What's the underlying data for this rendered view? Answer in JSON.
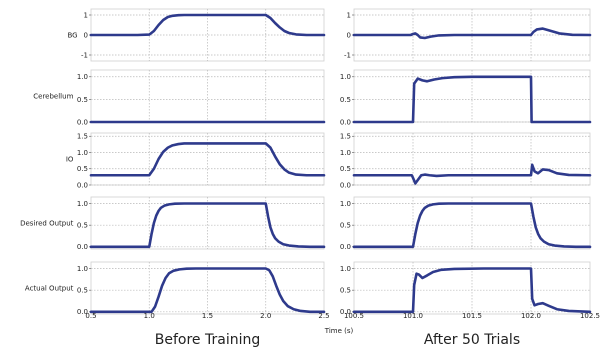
{
  "chart_data": {
    "type": "line",
    "line_color": "#2e3a8c",
    "grid": true,
    "grid_style": "dotted",
    "xlabel": "Time (s)",
    "columns": [
      {
        "id": "before",
        "caption": "Before Training",
        "xlim": [
          0.5,
          2.5
        ],
        "xticks": [
          0.5,
          1.0,
          1.5,
          2.0,
          2.5
        ],
        "xtick_labels": [
          "0.5",
          "1.0",
          "1.5",
          "2.0",
          "2.5"
        ]
      },
      {
        "id": "after",
        "caption": "After 50 Trials",
        "xlim": [
          100.5,
          102.5
        ],
        "xticks": [
          100.5,
          101.0,
          101.5,
          102.0,
          102.5
        ],
        "xtick_labels": [
          "100.5",
          "101.0",
          "101.5",
          "102.0",
          "102.5"
        ]
      }
    ],
    "rows": [
      {
        "id": "bg",
        "label": "BG",
        "ylim": [
          -1.3,
          1.3
        ],
        "yticks": [
          -1,
          0,
          1
        ],
        "ytick_labels": [
          "-1",
          "0",
          "1"
        ],
        "series": [
          {
            "column": "before",
            "x": [
              0.5,
              0.9,
              1.0,
              1.04,
              1.08,
              1.12,
              1.16,
              1.2,
              1.25,
              1.3,
              1.4,
              1.6,
              1.8,
              2.0,
              2.04,
              2.08,
              2.12,
              2.16,
              2.2,
              2.26,
              2.35,
              2.5
            ],
            "y": [
              0,
              0,
              0.02,
              0.2,
              0.5,
              0.75,
              0.9,
              0.96,
              0.99,
              1.0,
              1.0,
              1.0,
              1.0,
              1.0,
              0.85,
              0.6,
              0.38,
              0.2,
              0.1,
              0.03,
              0.0,
              0.0
            ]
          },
          {
            "column": "after",
            "x": [
              100.5,
              100.98,
              101.0,
              101.02,
              101.04,
              101.06,
              101.1,
              101.15,
              101.22,
              101.35,
              101.6,
              101.8,
              102.0,
              102.02,
              102.05,
              102.1,
              102.16,
              102.24,
              102.35,
              102.5
            ],
            "y": [
              0,
              0,
              0.05,
              0.08,
              0.0,
              -0.12,
              -0.15,
              -0.08,
              -0.02,
              0,
              0,
              0,
              0,
              0.15,
              0.28,
              0.32,
              0.22,
              0.08,
              0.01,
              0
            ]
          }
        ]
      },
      {
        "id": "cerebellum",
        "label": "Cerebellum",
        "ylim": [
          0,
          1.15
        ],
        "yticks": [
          0.0,
          0.5,
          1.0
        ],
        "ytick_labels": [
          "0.0",
          "0.5",
          "1.0"
        ],
        "series": [
          {
            "column": "before",
            "x": [
              0.5,
              2.5
            ],
            "y": [
              0,
              0
            ]
          },
          {
            "column": "after",
            "x": [
              100.5,
              101.0,
              101.01,
              101.04,
              101.08,
              101.12,
              101.18,
              101.25,
              101.35,
              101.5,
              101.8,
              102.0,
              102.005,
              102.5
            ],
            "y": [
              0,
              0,
              0.85,
              0.96,
              0.92,
              0.9,
              0.94,
              0.97,
              0.99,
              1.0,
              1.0,
              1.0,
              0,
              0
            ]
          }
        ]
      },
      {
        "id": "io",
        "label": "IO",
        "ylim": [
          0,
          1.6
        ],
        "yticks": [
          0.0,
          0.5,
          1.0,
          1.5
        ],
        "ytick_labels": [
          "0.0",
          "0.5",
          "1.0",
          "1.5"
        ],
        "series": [
          {
            "column": "before",
            "x": [
              0.5,
              1.0,
              1.04,
              1.08,
              1.12,
              1.16,
              1.2,
              1.25,
              1.3,
              1.4,
              1.6,
              1.8,
              2.0,
              2.04,
              2.08,
              2.12,
              2.16,
              2.2,
              2.26,
              2.35,
              2.5
            ],
            "y": [
              0.3,
              0.3,
              0.5,
              0.8,
              1.02,
              1.15,
              1.22,
              1.26,
              1.28,
              1.28,
              1.28,
              1.28,
              1.28,
              1.15,
              0.88,
              0.64,
              0.48,
              0.38,
              0.32,
              0.3,
              0.3
            ]
          },
          {
            "column": "after",
            "x": [
              100.5,
              100.99,
              101.0,
              101.02,
              101.04,
              101.07,
              101.1,
              101.14,
              101.2,
              101.3,
              101.6,
              101.8,
              102.0,
              102.01,
              102.03,
              102.06,
              102.1,
              102.15,
              102.22,
              102.32,
              102.5
            ],
            "y": [
              0.3,
              0.3,
              0.22,
              0.05,
              0.15,
              0.3,
              0.32,
              0.3,
              0.28,
              0.3,
              0.3,
              0.3,
              0.3,
              0.62,
              0.42,
              0.36,
              0.48,
              0.46,
              0.36,
              0.31,
              0.3
            ]
          }
        ]
      },
      {
        "id": "desired",
        "label": "Desired Output",
        "ylim": [
          -0.05,
          1.15
        ],
        "yticks": [
          0.0,
          0.5,
          1.0
        ],
        "ytick_labels": [
          "0.0",
          "0.5",
          "1.0"
        ],
        "series": [
          {
            "column": "before",
            "x": [
              0.5,
              1.0,
              1.02,
              1.04,
              1.06,
              1.08,
              1.1,
              1.13,
              1.17,
              1.22,
              1.3,
              1.5,
              1.8,
              2.0,
              2.02,
              2.04,
              2.06,
              2.08,
              2.11,
              2.15,
              2.2,
              2.28,
              2.38,
              2.5
            ],
            "y": [
              0,
              0,
              0.3,
              0.55,
              0.72,
              0.83,
              0.9,
              0.95,
              0.98,
              0.995,
              1.0,
              1.0,
              1.0,
              1.0,
              0.7,
              0.45,
              0.3,
              0.2,
              0.12,
              0.06,
              0.03,
              0.01,
              0,
              0
            ]
          },
          {
            "column": "after",
            "x": [
              100.5,
              101.0,
              101.02,
              101.04,
              101.06,
              101.08,
              101.1,
              101.13,
              101.17,
              101.22,
              101.3,
              101.5,
              101.8,
              102.0,
              102.02,
              102.04,
              102.06,
              102.08,
              102.11,
              102.15,
              102.2,
              102.28,
              102.38,
              102.5
            ],
            "y": [
              0,
              0,
              0.3,
              0.55,
              0.72,
              0.83,
              0.9,
              0.95,
              0.98,
              0.995,
              1.0,
              1.0,
              1.0,
              1.0,
              0.7,
              0.45,
              0.3,
              0.2,
              0.12,
              0.06,
              0.03,
              0.01,
              0,
              0
            ]
          }
        ]
      },
      {
        "id": "actual",
        "label": "Actual Output",
        "ylim": [
          -0.05,
          1.15
        ],
        "yticks": [
          0.0,
          0.5,
          1.0
        ],
        "ytick_labels": [
          "0.0",
          "0.5",
          "1.0"
        ],
        "series": [
          {
            "column": "before",
            "x": [
              0.5,
              1.02,
              1.05,
              1.08,
              1.11,
              1.14,
              1.17,
              1.21,
              1.26,
              1.32,
              1.4,
              1.6,
              2.0,
              2.03,
              2.06,
              2.09,
              2.12,
              2.15,
              2.19,
              2.24,
              2.3,
              2.38,
              2.5
            ],
            "y": [
              0,
              0,
              0.12,
              0.35,
              0.6,
              0.78,
              0.89,
              0.95,
              0.98,
              0.995,
              1.0,
              1.0,
              1.0,
              0.96,
              0.82,
              0.6,
              0.4,
              0.25,
              0.13,
              0.06,
              0.02,
              0,
              0
            ]
          },
          {
            "column": "after",
            "x": [
              100.5,
              101.0,
              101.01,
              101.03,
              101.05,
              101.08,
              101.12,
              101.17,
              101.24,
              101.35,
              101.6,
              102.0,
              102.01,
              102.03,
              102.06,
              102.1,
              102.15,
              102.22,
              102.32,
              102.5
            ],
            "y": [
              0,
              0,
              0.62,
              0.88,
              0.86,
              0.78,
              0.84,
              0.92,
              0.97,
              0.99,
              1.0,
              1.0,
              0.3,
              0.15,
              0.18,
              0.2,
              0.14,
              0.06,
              0.02,
              0
            ]
          }
        ]
      }
    ]
  }
}
